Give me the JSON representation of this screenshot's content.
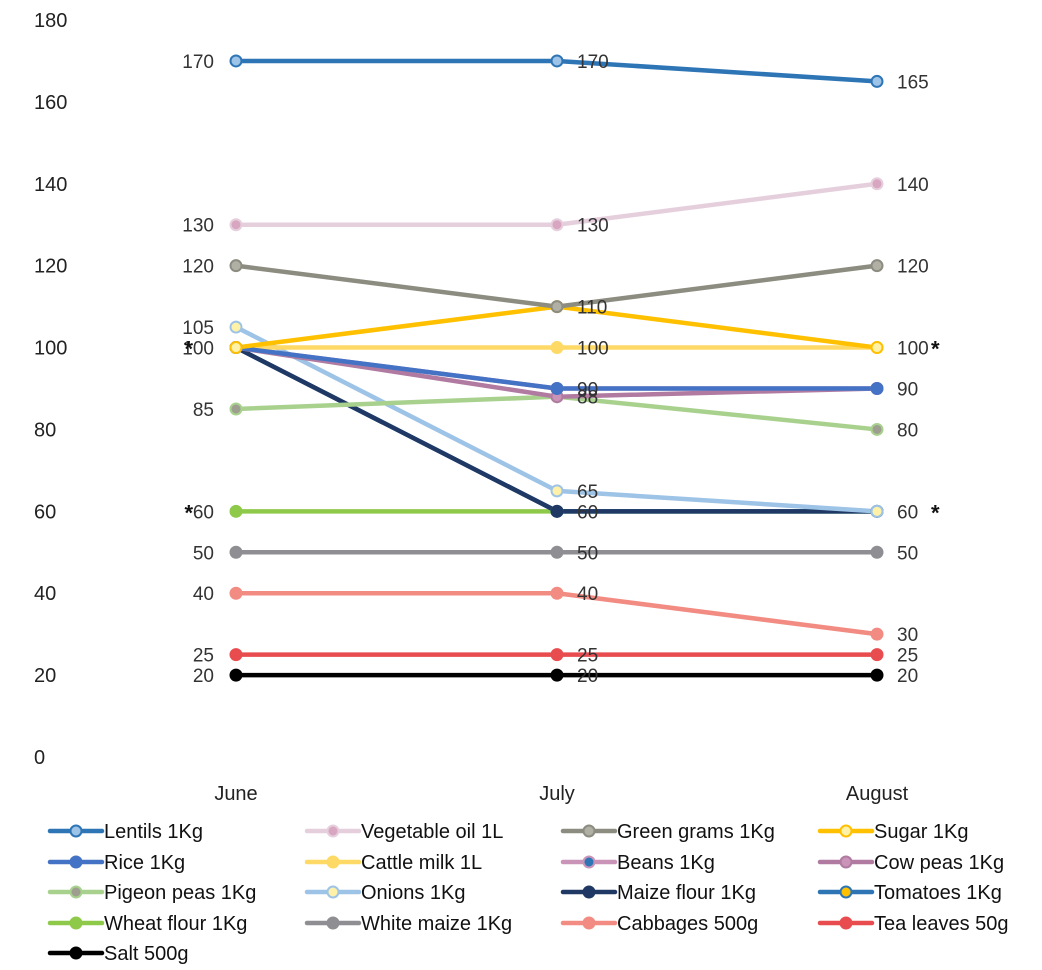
{
  "chart_data": {
    "type": "line",
    "title": "",
    "xlabel": "",
    "ylabel": "",
    "ylim": [
      0,
      180
    ],
    "y_ticks": [
      "0",
      "20",
      "40",
      "60",
      "80",
      "100",
      "120",
      "140",
      "160",
      "180"
    ],
    "categories": [
      "June",
      "July",
      "August"
    ],
    "grid": false,
    "legend_position": "bottom",
    "series": [
      {
        "name": "Lentils 1Kg",
        "values": [
          170,
          170,
          165
        ],
        "color": "#2e75b6",
        "marker_fill": "#9dc3e6",
        "labels": [
          "170",
          "170",
          "165"
        ]
      },
      {
        "name": "Vegetable oil 1L",
        "values": [
          130,
          130,
          140
        ],
        "color": "#e6cfdd",
        "marker_fill": "#d9a6c2",
        "labels": [
          "130",
          "130",
          "140"
        ]
      },
      {
        "name": "Green grams 1Kg",
        "values": [
          120,
          110,
          120
        ],
        "color": "#8c8c80",
        "marker_fill": "#b0b0a4",
        "labels": [
          "120",
          "110",
          "120"
        ]
      },
      {
        "name": "Sugar 1Kg",
        "values": [
          100,
          110,
          100
        ],
        "color": "#ffc000",
        "marker_fill": "#fff2a8",
        "labels": [
          "",
          "",
          ""
        ]
      },
      {
        "name": "Rice 1Kg",
        "values": [
          100,
          90,
          90
        ],
        "color": "#4472c4",
        "marker_fill": "#4472c4",
        "labels": [
          "",
          "",
          ""
        ]
      },
      {
        "name": "Cattle milk 1L",
        "values": [
          100,
          100,
          100
        ],
        "color": "#ffd966",
        "marker_fill": "#ffd966",
        "labels": [
          "100",
          "100",
          "100"
        ]
      },
      {
        "name": "Beans 1Kg",
        "values": [
          100,
          90,
          90
        ],
        "color": "#c994b8",
        "marker_fill": "#2e75b6",
        "labels": [
          "",
          "90",
          "90"
        ]
      },
      {
        "name": "Cow peas 1Kg",
        "values": [
          100,
          88,
          90
        ],
        "color": "#b07aa1",
        "marker_fill": "#c994b8",
        "labels": [
          "",
          "",
          ""
        ]
      },
      {
        "name": "Pigeon peas 1Kg",
        "values": [
          85,
          88,
          80
        ],
        "color": "#a9d18e",
        "marker_fill": "#9e9e90",
        "labels": [
          "85",
          "88",
          "80"
        ]
      },
      {
        "name": "Onions 1Kg",
        "values": [
          105,
          65,
          60
        ],
        "color": "#9dc3e6",
        "marker_fill": "#fff2a8",
        "labels": [
          "105",
          "65",
          ""
        ]
      },
      {
        "name": "Maize flour 1Kg",
        "values": [
          100,
          60,
          60
        ],
        "color": "#1f3864",
        "marker_fill": "#1f3864",
        "labels": [
          "",
          "",
          ""
        ]
      },
      {
        "name": "Tomatoes 1Kg",
        "values": [
          100,
          60,
          60
        ],
        "color": "#2e75b6",
        "marker_fill": "#ffc000",
        "labels": [
          "",
          "",
          ""
        ]
      },
      {
        "name": "Wheat flour 1Kg",
        "values": [
          60,
          60,
          60
        ],
        "color": "#8fc94a",
        "marker_fill": "#8fc94a",
        "labels": [
          "60",
          "60",
          "60"
        ]
      },
      {
        "name": "White maize 1Kg",
        "values": [
          50,
          50,
          50
        ],
        "color": "#8e8e93",
        "marker_fill": "#8e8e93",
        "labels": [
          "50",
          "50",
          "50"
        ]
      },
      {
        "name": "Cabbages 500g",
        "values": [
          40,
          40,
          30
        ],
        "color": "#f28b82",
        "marker_fill": "#f28b82",
        "labels": [
          "40",
          "40",
          "30"
        ]
      },
      {
        "name": "Tea leaves 50g",
        "values": [
          25,
          25,
          25
        ],
        "color": "#e84c4f",
        "marker_fill": "#e84c4f",
        "labels": [
          "25",
          "25",
          "25"
        ]
      },
      {
        "name": "Salt 500g",
        "values": [
          20,
          20,
          20
        ],
        "color": "#000000",
        "marker_fill": "#000000",
        "labels": [
          "20",
          "20",
          "20"
        ]
      }
    ],
    "annotations": [
      {
        "text": "*",
        "category": "June",
        "value": 100
      },
      {
        "text": "*",
        "category": "August",
        "value": 100
      },
      {
        "text": "*",
        "category": "June",
        "value": 60
      },
      {
        "text": "*",
        "category": "August",
        "value": 60
      }
    ]
  }
}
